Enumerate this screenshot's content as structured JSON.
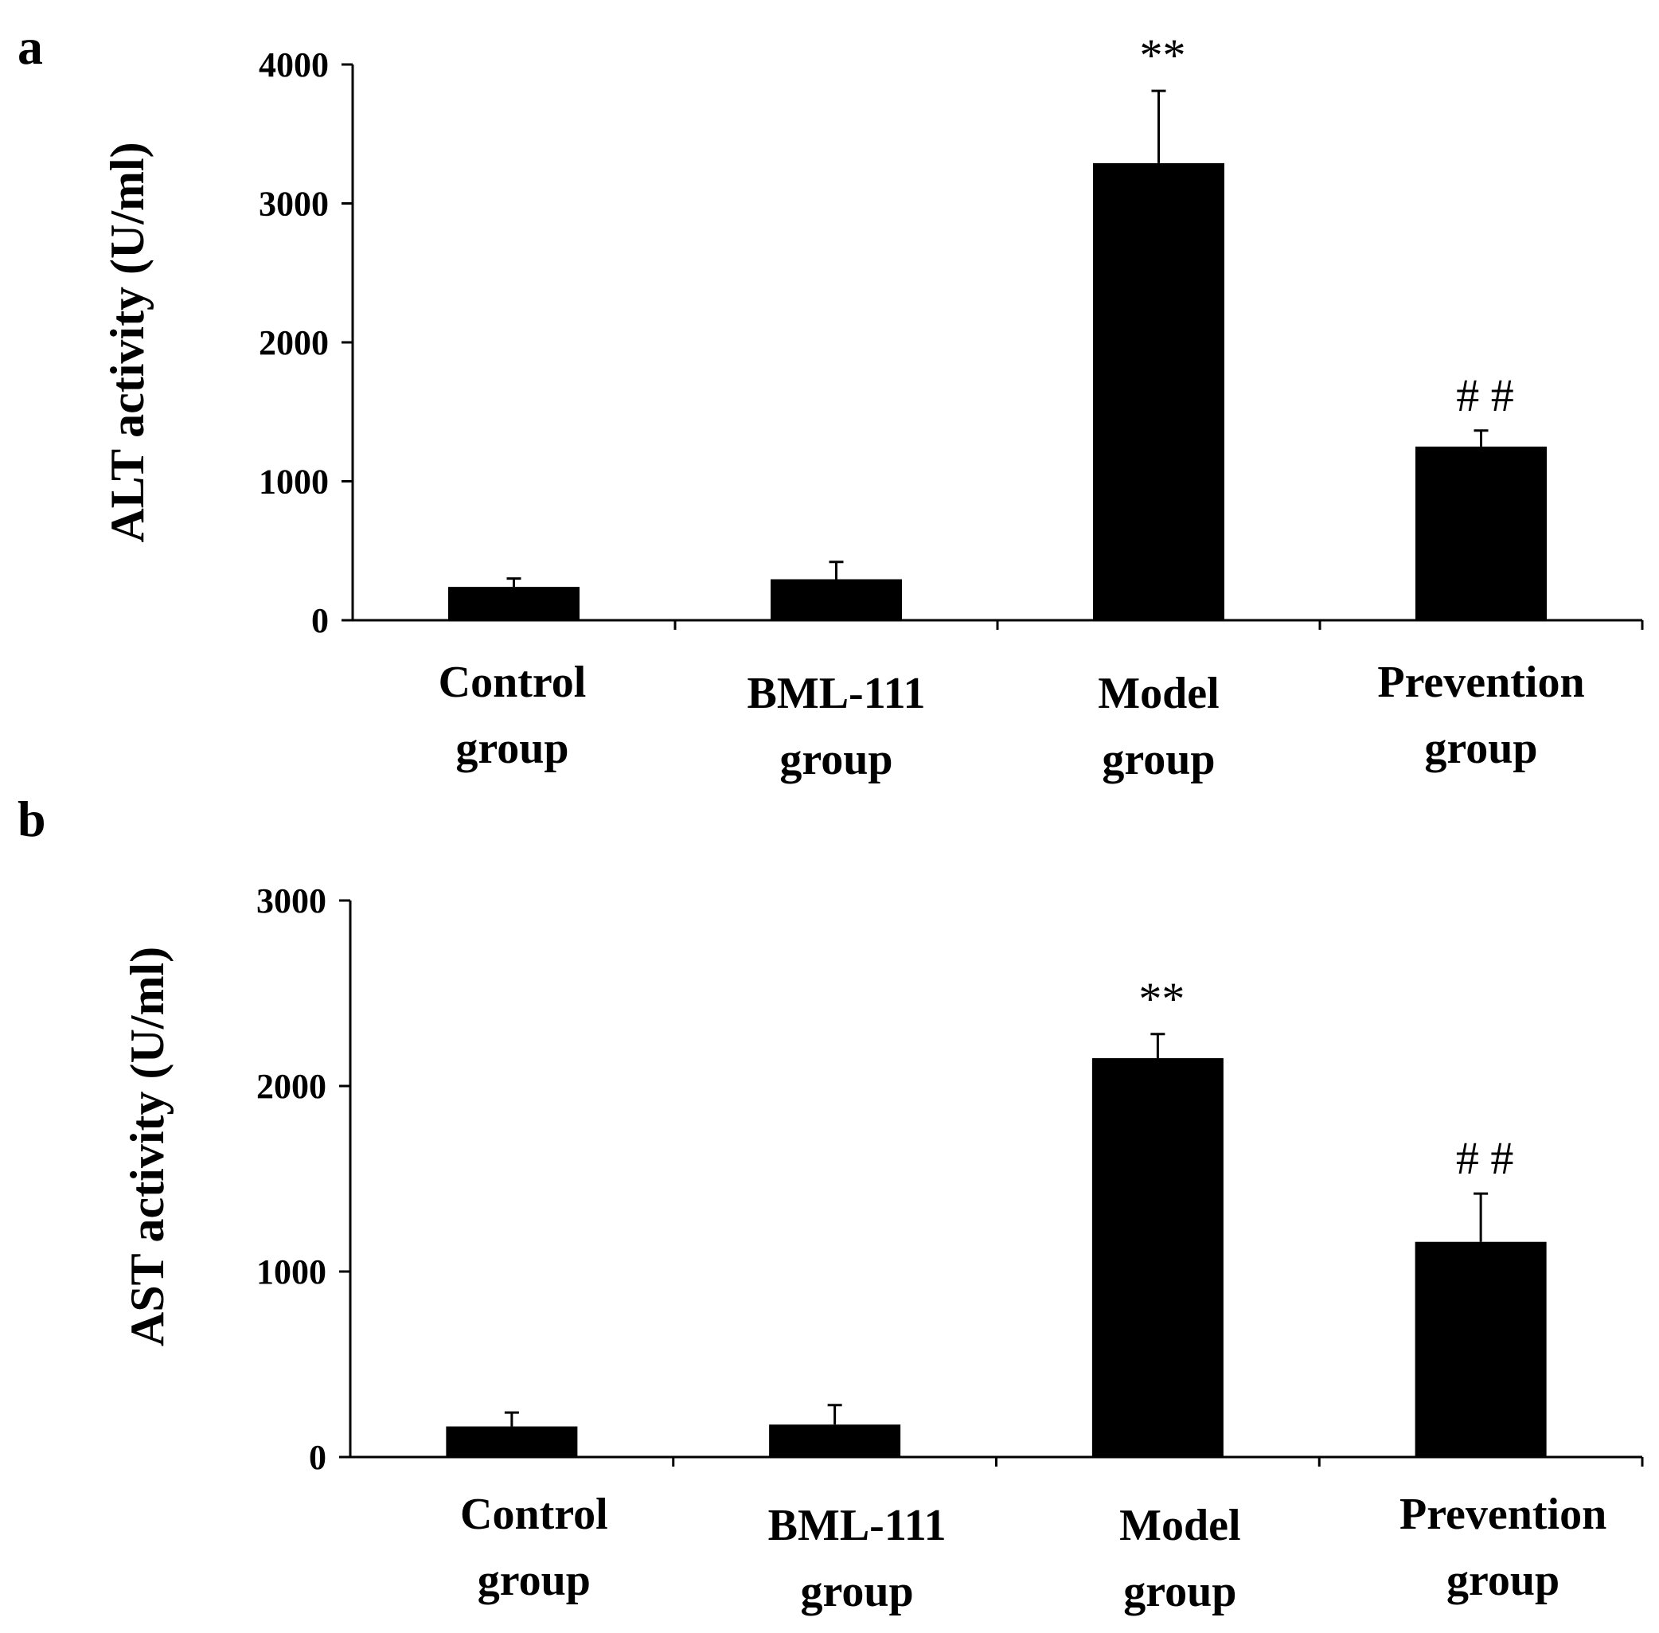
{
  "chart_data": [
    {
      "panel": "a",
      "type": "bar",
      "ylabel": "ALT activity (U/ml)",
      "ylim": [
        0,
        4000
      ],
      "yticks": [
        0,
        1000,
        2000,
        3000,
        4000
      ],
      "categories": [
        [
          "Control",
          "group"
        ],
        [
          "BML-111",
          "group"
        ],
        [
          "Model",
          "group"
        ],
        [
          "Prevention",
          "group"
        ]
      ],
      "values": [
        240,
        295,
        3290,
        1250
      ],
      "errors": [
        60,
        125,
        520,
        115
      ],
      "annotations": [
        "",
        "",
        "**",
        "# #"
      ]
    },
    {
      "panel": "b",
      "type": "bar",
      "ylabel": "AST activity (U/ml)",
      "ylim": [
        0,
        3000
      ],
      "yticks": [
        0,
        1000,
        2000,
        3000
      ],
      "categories": [
        [
          "Control",
          "group"
        ],
        [
          "BML-111",
          "group"
        ],
        [
          "Model",
          "group"
        ],
        [
          "Prevention",
          "group"
        ]
      ],
      "values": [
        165,
        175,
        2150,
        1160
      ],
      "errors": [
        75,
        105,
        130,
        260
      ],
      "annotations": [
        "",
        "",
        "**",
        "# #"
      ]
    }
  ]
}
